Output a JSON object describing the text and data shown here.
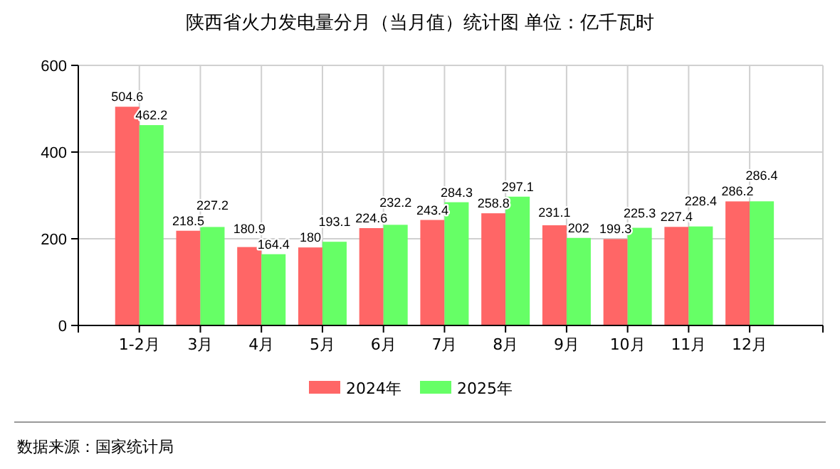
{
  "chart_data": {
    "type": "bar",
    "title": "陕西省火力发电量分月（当月值）统计图 单位：亿千瓦时",
    "categories": [
      "1-2月",
      "3月",
      "4月",
      "5月",
      "6月",
      "7月",
      "8月",
      "9月",
      "10月",
      "11月",
      "12月"
    ],
    "series": [
      {
        "name": "2024年",
        "color": "#ff6666",
        "values": [
          504.6,
          218.5,
          180.9,
          180,
          224.6,
          243.4,
          258.8,
          231.1,
          199.3,
          227.4,
          286.2
        ]
      },
      {
        "name": "2025年",
        "color": "#66ff66",
        "values": [
          462.2,
          227.2,
          164.4,
          193.1,
          232.2,
          284.3,
          297.1,
          202,
          225.3,
          228.4,
          286.4
        ]
      }
    ],
    "ylim": [
      0,
      600
    ],
    "yticks": [
      0,
      200,
      400,
      600
    ],
    "grid": true,
    "legend": "bottom",
    "data_labels": true,
    "annotations": [
      "数据来源：国家统计局"
    ]
  }
}
